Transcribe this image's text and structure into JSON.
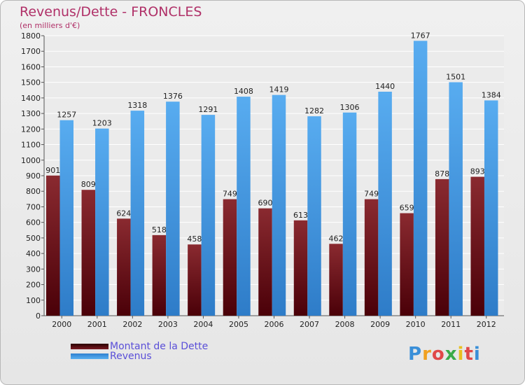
{
  "chart_data": {
    "type": "bar",
    "title": "Revenus/Dette - FRONCLES",
    "subtitle": "(en milliers d'€)",
    "xlabel": "",
    "ylabel": "",
    "categories": [
      "2000",
      "2001",
      "2002",
      "2003",
      "2004",
      "2005",
      "2006",
      "2007",
      "2008",
      "2009",
      "2010",
      "2011",
      "2012"
    ],
    "ylim": [
      0,
      1800
    ],
    "yticks": [
      0,
      100,
      200,
      300,
      400,
      500,
      600,
      700,
      800,
      900,
      1000,
      1100,
      1200,
      1300,
      1400,
      1500,
      1600,
      1700,
      1800
    ],
    "grid": true,
    "legend_position": "bottom-left",
    "series": [
      {
        "name": "Montant de la Dette",
        "color": "#7a1a22",
        "values": [
          901,
          809,
          624,
          518,
          458,
          749,
          690,
          613,
          462,
          749,
          659,
          878,
          893
        ]
      },
      {
        "name": "Revenus",
        "color": "#4aa0e6",
        "values": [
          1257,
          1203,
          1318,
          1376,
          1291,
          1408,
          1419,
          1282,
          1306,
          1440,
          1767,
          1501,
          1384
        ]
      }
    ]
  },
  "brand": {
    "text": "Proxiti",
    "colors": [
      "#3a8fd8",
      "#f0a020",
      "#e04848",
      "#3aaa48",
      "#e8c020",
      "#e04848",
      "#3a8fd8"
    ]
  }
}
